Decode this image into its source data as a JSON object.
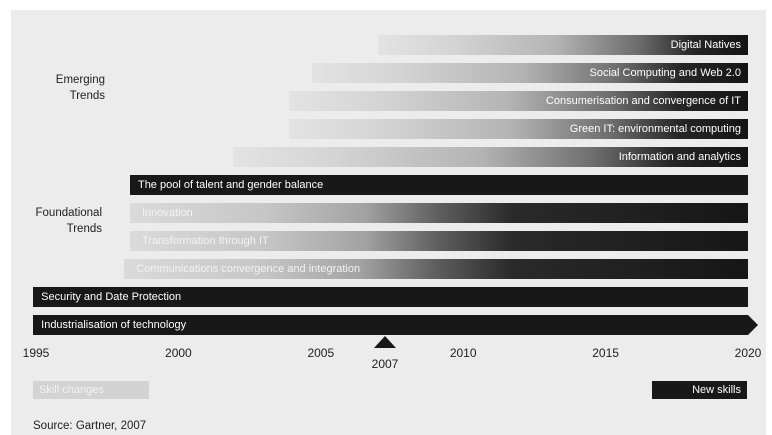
{
  "groups": {
    "emerging": "Emerging\nTrends",
    "foundational": "Foundational\nTrends"
  },
  "bars": [
    {
      "label": "Digital Natives",
      "start_year": 2007.0,
      "end_year": 2020,
      "style": "gradient-right",
      "group": "emerging"
    },
    {
      "label": "Social Computing and Web 2.0",
      "start_year": 2004.7,
      "end_year": 2020,
      "style": "gradient-right",
      "group": "emerging"
    },
    {
      "label": "Consumerisation and convergence of IT",
      "start_year": 2003.9,
      "end_year": 2020,
      "style": "gradient-right",
      "group": "emerging"
    },
    {
      "label": "Green IT: environmental computing",
      "start_year": 2003.9,
      "end_year": 2020,
      "style": "gradient-right",
      "group": "emerging"
    },
    {
      "label": "Information and analytics",
      "start_year": 2001.9,
      "end_year": 2020,
      "style": "gradient-right",
      "group": "emerging"
    },
    {
      "label": "The pool of talent and gender balance",
      "start_year": 1998.3,
      "end_year": 2020,
      "style": "solid",
      "group": "foundational"
    },
    {
      "label": "Innovation",
      "start_year": 1998.3,
      "end_year": 2020,
      "style": "gradient-left",
      "group": "foundational"
    },
    {
      "label": "Transformation through IT",
      "start_year": 1998.3,
      "end_year": 2020,
      "style": "gradient-left",
      "group": "foundational"
    },
    {
      "label": "Communications convergence and integration",
      "start_year": 1998.1,
      "end_year": 2020,
      "style": "gradient-left",
      "group": "foundational"
    },
    {
      "label": "Security and Date Protection",
      "start_year": 1994.9,
      "end_year": 2020,
      "style": "solid",
      "group": "foundational"
    },
    {
      "label": "Industrialisation of technology",
      "start_year": 1994.9,
      "end_year": 2020.4,
      "style": "arrow",
      "group": "foundational"
    }
  ],
  "axis": {
    "ticks": [
      "1995",
      "2000",
      "2005",
      "2010",
      "2015",
      "2020"
    ],
    "marker": "2007"
  },
  "legend": {
    "old": "Skill changes",
    "new": "New skills"
  },
  "source": "Source: Gartner, 2007"
}
